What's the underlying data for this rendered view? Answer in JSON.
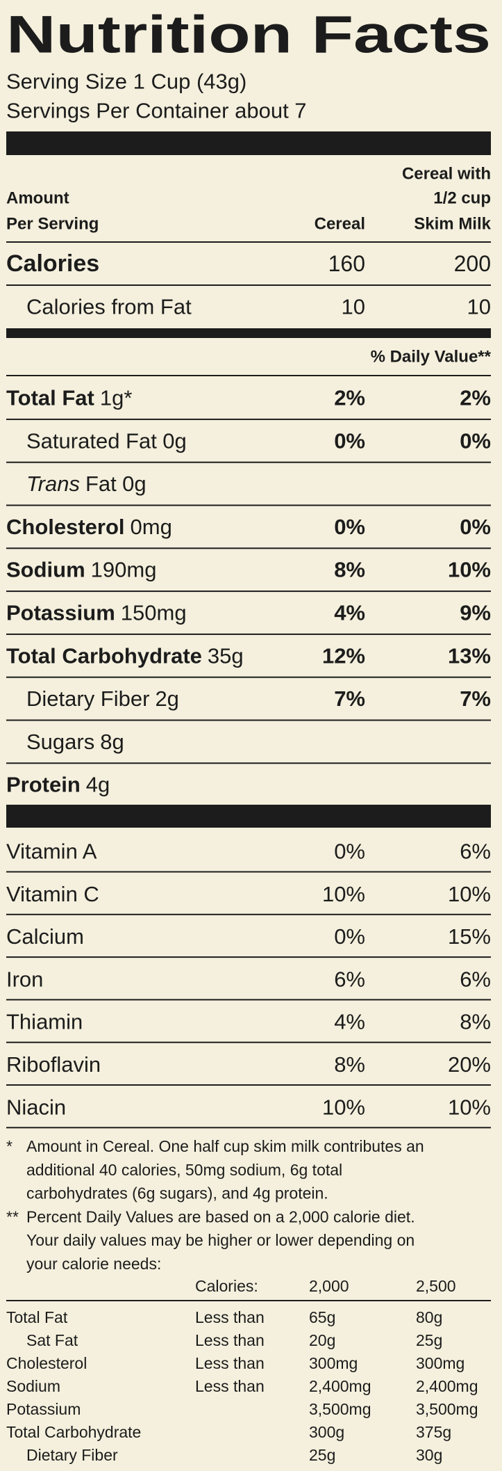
{
  "header": {
    "title": "Nutrition Facts",
    "serving_size": "Serving Size 1 Cup (43g)",
    "servings_per_container": "Servings Per Container about 7"
  },
  "columns": {
    "amount": [
      "Amount",
      "Per Serving"
    ],
    "cereal": "Cereal",
    "milk": [
      "Cereal with",
      "1/2 cup",
      "Skim Milk"
    ]
  },
  "calories": {
    "label": "Calories",
    "cereal": "160",
    "milk": "200"
  },
  "calories_from_fat": {
    "label": "Calories from Fat",
    "cereal": "10",
    "milk": "10"
  },
  "daily_value_header": "% Daily Value**",
  "nutrients": [
    {
      "name": "Total Fat",
      "amount": "1g*",
      "cereal": "2%",
      "milk": "2%",
      "sub": [
        {
          "name": "Saturated Fat",
          "amount": "0g",
          "cereal": "0%",
          "milk": "0%"
        },
        {
          "name_italic": "Trans",
          "name": "Fat",
          "amount": "0g"
        }
      ]
    },
    {
      "name": "Cholesterol",
      "amount": "0mg",
      "cereal": "0%",
      "milk": "0%"
    },
    {
      "name": "Sodium",
      "amount": "190mg",
      "cereal": "8%",
      "milk": "10%"
    },
    {
      "name": "Potassium",
      "amount": "150mg",
      "cereal": "4%",
      "milk": "9%"
    },
    {
      "name": "Total Carbohydrate",
      "amount": "35g",
      "cereal": "12%",
      "milk": "13%",
      "sub": [
        {
          "name": "Dietary Fiber",
          "amount": "2g",
          "cereal": "7%",
          "milk": "7%"
        },
        {
          "name": "Sugars",
          "amount": "8g"
        }
      ]
    },
    {
      "name": "Protein",
      "amount": "4g"
    }
  ],
  "vitamins": [
    {
      "name": "Vitamin A",
      "cereal": "0%",
      "milk": "6%"
    },
    {
      "name": "Vitamin C",
      "cereal": "10%",
      "milk": "10%"
    },
    {
      "name": "Calcium",
      "cereal": "0%",
      "milk": "15%"
    },
    {
      "name": "Iron",
      "cereal": "6%",
      "milk": "6%"
    },
    {
      "name": "Thiamin",
      "cereal": "4%",
      "milk": "8%"
    },
    {
      "name": "Riboflavin",
      "cereal": "8%",
      "milk": "20%"
    },
    {
      "name": "Niacin",
      "cereal": "10%",
      "milk": "10%"
    }
  ],
  "footnotes": [
    {
      "mark": "*",
      "lines": [
        "Amount in Cereal. One half cup skim milk contributes an",
        "additional 40 calories, 50mg sodium, 6g total",
        "carbohydrates (6g sugars), and 4g protein."
      ]
    },
    {
      "mark": "**",
      "lines": [
        "Percent Daily Values are based on a 2,000 calorie diet.",
        "Your daily values may be higher or lower depending on",
        "your calorie needs:"
      ]
    }
  ],
  "daily_values": {
    "header": {
      "label": "Calories:",
      "c2000": "2,000",
      "c2500": "2,500"
    },
    "rows": [
      {
        "name": "Total Fat",
        "limit": "Less than",
        "c2000": "65g",
        "c2500": "80g",
        "sub": [
          {
            "name": "Sat Fat",
            "limit": "Less than",
            "c2000": "20g",
            "c2500": "25g"
          }
        ]
      },
      {
        "name": "Cholesterol",
        "limit": "Less than",
        "c2000": "300mg",
        "c2500": "300mg"
      },
      {
        "name": "Sodium",
        "limit": "Less than",
        "c2000": "2,400mg",
        "c2500": "2,400mg"
      },
      {
        "name": "Potassium",
        "c2000": "3,500mg",
        "c2500": "3,500mg"
      },
      {
        "name": "Total Carbohydrate",
        "c2000": "300g",
        "c2500": "375g",
        "sub": [
          {
            "name": "Dietary Fiber",
            "c2000": "25g",
            "c2500": "30g"
          }
        ]
      }
    ]
  }
}
